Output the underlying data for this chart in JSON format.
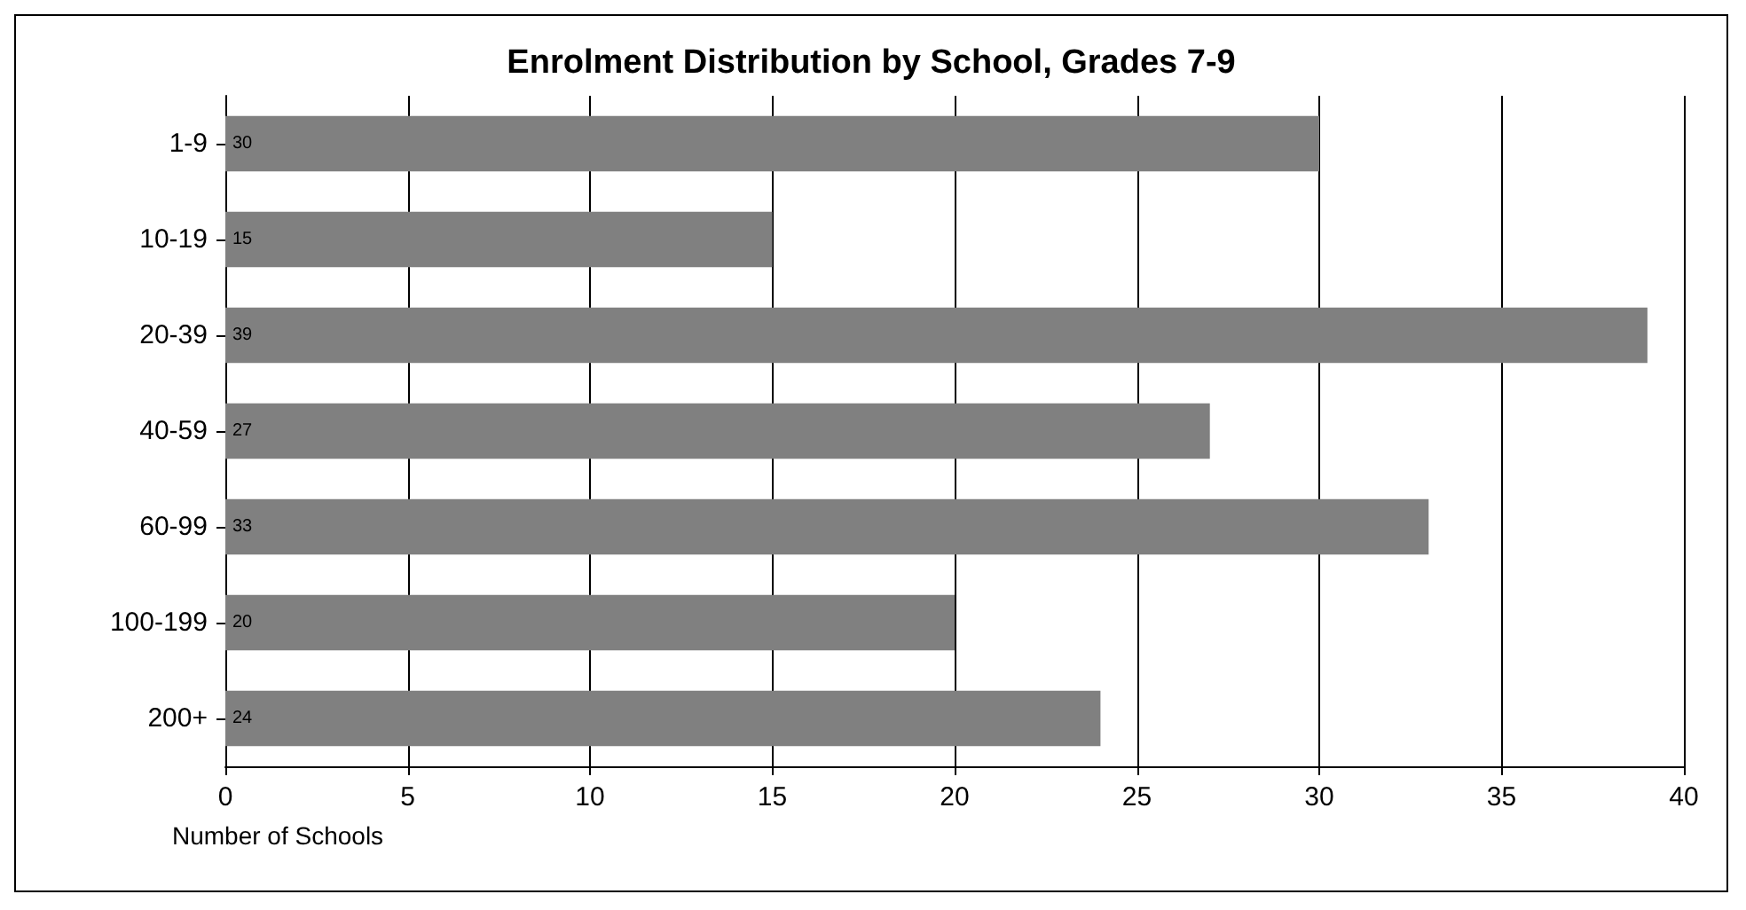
{
  "chart_data": {
    "type": "bar",
    "orientation": "horizontal",
    "title": "Enrolment Distribution by School, Grades 7-9",
    "xlabel": "Number of Schools",
    "categories": [
      "1-9",
      "10-19",
      "20-39",
      "40-59",
      "60-99",
      "100-199",
      "200+"
    ],
    "values": [
      30,
      15,
      39,
      27,
      33,
      20,
      24
    ],
    "color": "#808080",
    "xlim": [
      0,
      40
    ],
    "xticks": [
      0,
      5,
      10,
      15,
      20,
      25,
      30,
      35,
      40
    ],
    "grid": "x",
    "data_labels": true
  }
}
